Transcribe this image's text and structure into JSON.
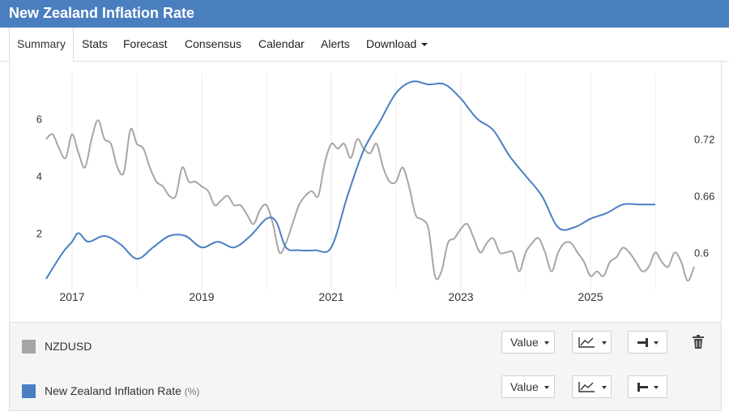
{
  "header": {
    "title": "New Zealand Inflation Rate"
  },
  "tabs": [
    {
      "label": "Summary",
      "active": true
    },
    {
      "label": "Stats"
    },
    {
      "label": "Forecast"
    },
    {
      "label": "Consensus"
    },
    {
      "label": "Calendar"
    },
    {
      "label": "Alerts"
    },
    {
      "label": "Download",
      "dropdown": true
    }
  ],
  "legend": {
    "rows": [
      {
        "name": "NZDUSD",
        "unit": "",
        "color": "#a6a6a6",
        "value_label": "Value",
        "chart_icon": "line-chart-icon",
        "axis_icon": "right-axis-icon",
        "delete_icon": "trash-icon"
      },
      {
        "name": "New Zealand Inflation Rate",
        "unit": "(%)",
        "color": "#4a7fc2",
        "value_label": "Value",
        "chart_icon": "line-chart-icon",
        "axis_icon": "left-axis-icon"
      }
    ]
  },
  "chart_data": {
    "type": "line",
    "x_tick_labels": [
      "2017",
      "2019",
      "2021",
      "2023",
      "2025"
    ],
    "x_range": [
      2016.6,
      2026.6
    ],
    "left_axis": {
      "ticks": [
        "2",
        "4",
        "6"
      ],
      "range": [
        0.0,
        7.6
      ]
    },
    "right_axis": {
      "ticks": [
        "0.6",
        "0.66",
        "0.72"
      ],
      "range": [
        0.56,
        0.79
      ]
    },
    "grid": "vertical",
    "series": [
      {
        "name": "New Zealand Inflation Rate",
        "axis": "left",
        "color": "#4a7fc2",
        "x": [
          2016.6,
          2016.85,
          2017.0,
          2017.1,
          2017.25,
          2017.5,
          2017.75,
          2018.0,
          2018.25,
          2018.5,
          2018.75,
          2019.0,
          2019.25,
          2019.5,
          2019.75,
          2020.0,
          2020.15,
          2020.3,
          2020.5,
          2020.75,
          2021.0,
          2021.25,
          2021.5,
          2021.75,
          2022.0,
          2022.25,
          2022.5,
          2022.75,
          2023.0,
          2023.25,
          2023.5,
          2023.75,
          2024.0,
          2024.25,
          2024.5,
          2024.75,
          2025.0,
          2025.25,
          2025.5,
          2025.75,
          2026.0
        ],
        "y": [
          0.4,
          1.3,
          1.7,
          2.0,
          1.7,
          1.9,
          1.6,
          1.1,
          1.5,
          1.9,
          1.9,
          1.5,
          1.7,
          1.5,
          1.9,
          2.5,
          2.4,
          1.5,
          1.4,
          1.4,
          1.5,
          3.3,
          4.9,
          5.9,
          6.9,
          7.3,
          7.2,
          7.2,
          6.7,
          6.0,
          5.6,
          4.7,
          4.0,
          3.3,
          2.2,
          2.2,
          2.5,
          2.7,
          3.0,
          3.0,
          3.0
        ]
      },
      {
        "name": "NZDUSD",
        "axis": "right",
        "color": "#a6a6a6",
        "x": [
          2016.6,
          2016.7,
          2016.8,
          2016.9,
          2017.0,
          2017.1,
          2017.2,
          2017.3,
          2017.4,
          2017.5,
          2017.6,
          2017.7,
          2017.8,
          2017.9,
          2018.0,
          2018.1,
          2018.2,
          2018.3,
          2018.4,
          2018.5,
          2018.6,
          2018.7,
          2018.8,
          2018.9,
          2019.0,
          2019.1,
          2019.2,
          2019.3,
          2019.4,
          2019.5,
          2019.6,
          2019.7,
          2019.8,
          2019.9,
          2020.0,
          2020.1,
          2020.2,
          2020.3,
          2020.4,
          2020.5,
          2020.6,
          2020.7,
          2020.8,
          2020.9,
          2021.0,
          2021.1,
          2021.2,
          2021.3,
          2021.4,
          2021.5,
          2021.6,
          2021.7,
          2021.8,
          2021.9,
          2022.0,
          2022.1,
          2022.2,
          2022.3,
          2022.4,
          2022.5,
          2022.6,
          2022.7,
          2022.8,
          2022.9,
          2023.0,
          2023.1,
          2023.2,
          2023.3,
          2023.4,
          2023.5,
          2023.6,
          2023.7,
          2023.8,
          2023.9,
          2024.0,
          2024.1,
          2024.2,
          2024.3,
          2024.4,
          2024.5,
          2024.6,
          2024.7,
          2024.8,
          2024.9,
          2025.0,
          2025.1,
          2025.2,
          2025.3,
          2025.4,
          2025.5,
          2025.6,
          2025.7,
          2025.8,
          2025.9,
          2026.0,
          2026.1,
          2026.2,
          2026.3,
          2026.4,
          2026.5,
          2026.6
        ],
        "y": [
          0.72,
          0.725,
          0.71,
          0.7,
          0.725,
          0.705,
          0.69,
          0.72,
          0.74,
          0.72,
          0.715,
          0.69,
          0.685,
          0.73,
          0.715,
          0.71,
          0.69,
          0.675,
          0.67,
          0.66,
          0.66,
          0.69,
          0.675,
          0.675,
          0.67,
          0.665,
          0.65,
          0.655,
          0.66,
          0.65,
          0.65,
          0.64,
          0.63,
          0.645,
          0.65,
          0.63,
          0.6,
          0.61,
          0.63,
          0.65,
          0.66,
          0.665,
          0.66,
          0.695,
          0.715,
          0.71,
          0.715,
          0.7,
          0.72,
          0.71,
          0.705,
          0.715,
          0.69,
          0.675,
          0.675,
          0.69,
          0.67,
          0.64,
          0.635,
          0.625,
          0.575,
          0.58,
          0.61,
          0.615,
          0.625,
          0.63,
          0.615,
          0.6,
          0.61,
          0.615,
          0.6,
          0.6,
          0.6,
          0.58,
          0.6,
          0.61,
          0.615,
          0.6,
          0.58,
          0.6,
          0.61,
          0.61,
          0.6,
          0.59,
          0.575,
          0.58,
          0.575,
          0.59,
          0.595,
          0.605,
          0.6,
          0.59,
          0.58,
          0.585,
          0.6,
          0.59,
          0.585,
          0.6,
          0.59,
          0.57,
          0.585
        ]
      }
    ]
  }
}
